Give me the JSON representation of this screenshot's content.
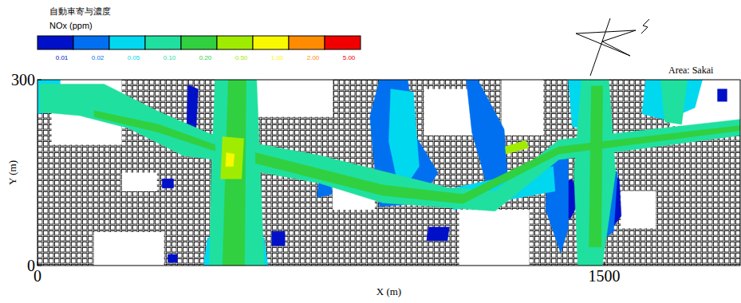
{
  "chart_data": {
    "type": "contour",
    "title": "自動車寄与濃度",
    "subtitle": "NOx (ppm)",
    "annotations": [
      "Area: Sakai"
    ],
    "x_label": "X (m)",
    "y_label": "Y (m)",
    "xlim": [
      0,
      1860
    ],
    "ylim": [
      0,
      300
    ],
    "xticks": [
      0,
      1500
    ],
    "yticks": [
      0,
      300
    ],
    "colorbar": {
      "ticks": [
        0.01,
        0.02,
        0.05,
        {
          "value": 0.1,
          "label": "0.10"
        },
        {
          "value": 0.2,
          "label": "0.20"
        },
        {
          "value": 0.5,
          "label": "0.50"
        },
        {
          "value": 1,
          "label": "1.00"
        },
        {
          "value": 2,
          "label": "2.00"
        },
        {
          "value": 5,
          "label": "5.00"
        }
      ],
      "colors": [
        "#0010c8",
        "#0070f0",
        "#00d8f0",
        "#20e0a0",
        "#30d040",
        "#a0ec00",
        "#f8f800",
        "#ff8c00",
        "#f00000"
      ]
    },
    "zones": [
      {
        "level": 0.01,
        "points": [
          [
            395,
            220
          ],
          [
            420,
            220
          ],
          [
            425,
            285
          ],
          [
            398,
            292
          ]
        ]
      },
      {
        "level": 0.01,
        "points": [
          [
            1370,
            85
          ],
          [
            1410,
            75
          ],
          [
            1435,
            105
          ],
          [
            1415,
            140
          ],
          [
            1385,
            130
          ]
        ]
      },
      {
        "level": 0.01,
        "points": [
          [
            1520,
            60
          ],
          [
            1545,
            80
          ],
          [
            1540,
            140
          ],
          [
            1515,
            150
          ]
        ]
      },
      {
        "level": 0.01,
        "points": [
          [
            1030,
            40
          ],
          [
            1085,
            40
          ],
          [
            1090,
            62
          ],
          [
            1035,
            62
          ]
        ]
      },
      {
        "level": 0.01,
        "points": [
          [
            620,
            32
          ],
          [
            655,
            32
          ],
          [
            655,
            55
          ],
          [
            620,
            55
          ]
        ]
      },
      {
        "level": 0.01,
        "points": [
          [
            345,
            5
          ],
          [
            370,
            5
          ],
          [
            370,
            18
          ],
          [
            345,
            18
          ]
        ]
      },
      {
        "level": 0.01,
        "points": [
          [
            1800,
            265
          ],
          [
            1825,
            265
          ],
          [
            1825,
            285
          ],
          [
            1800,
            285
          ]
        ]
      },
      {
        "level": 0.01,
        "points": [
          [
            330,
            125
          ],
          [
            360,
            125
          ],
          [
            360,
            140
          ],
          [
            330,
            140
          ]
        ]
      },
      {
        "level": 0.02,
        "points": [
          [
            905,
            300
          ],
          [
            980,
            300
          ],
          [
            1000,
            210
          ],
          [
            1060,
            150
          ],
          [
            1010,
            100
          ],
          [
            905,
            95
          ],
          [
            890,
            170
          ],
          [
            880,
            240
          ]
        ]
      },
      {
        "level": 0.02,
        "points": [
          [
            1135,
            300
          ],
          [
            1165,
            300
          ],
          [
            1235,
            220
          ],
          [
            1245,
            140
          ],
          [
            1190,
            128
          ],
          [
            1150,
            215
          ]
        ]
      },
      {
        "level": 0.02,
        "points": [
          [
            1350,
            165
          ],
          [
            1405,
            180
          ],
          [
            1405,
            60
          ],
          [
            1385,
            20
          ],
          [
            1345,
            90
          ]
        ]
      },
      {
        "level": 0.02,
        "points": [
          [
            1490,
            175
          ],
          [
            1535,
            150
          ],
          [
            1525,
            55
          ],
          [
            1495,
            40
          ]
        ]
      },
      {
        "level": 0.02,
        "points": [
          [
            740,
            110
          ],
          [
            780,
            115
          ],
          [
            775,
            145
          ],
          [
            745,
            140
          ]
        ]
      },
      {
        "level": 0.05,
        "points": [
          [
            935,
            285
          ],
          [
            995,
            280
          ],
          [
            1010,
            160
          ],
          [
            960,
            115
          ],
          [
            930,
            200
          ]
        ]
      },
      {
        "level": 0.05,
        "points": [
          [
            1405,
            300
          ],
          [
            1478,
            300
          ],
          [
            1472,
            215
          ],
          [
            1415,
            225
          ]
        ]
      },
      {
        "level": 0.05,
        "points": [
          [
            1100,
            125
          ],
          [
            1365,
            160
          ],
          [
            1370,
            120
          ],
          [
            1100,
            90
          ]
        ]
      },
      {
        "level": 0.05,
        "points": [
          [
            440,
            0
          ],
          [
            610,
            0
          ],
          [
            600,
            45
          ],
          [
            450,
            45
          ]
        ]
      },
      {
        "level": 0.05,
        "points": [
          [
            1610,
            300
          ],
          [
            1760,
            300
          ],
          [
            1740,
            255
          ],
          [
            1665,
            235
          ],
          [
            1600,
            245
          ]
        ]
      },
      {
        "level": 0.05,
        "points": [
          [
            0,
            300
          ],
          [
            60,
            300
          ],
          [
            60,
            250
          ],
          [
            0,
            245
          ]
        ]
      },
      {
        "level": 0.1,
        "points": [
          [
            455,
            0
          ],
          [
            600,
            0
          ],
          [
            590,
            150
          ],
          [
            580,
            300
          ],
          [
            470,
            300
          ],
          [
            460,
            150
          ]
        ]
      },
      {
        "level": 0.1,
        "points": [
          [
            6,
            293
          ],
          [
            176,
            293
          ],
          [
            323,
            248
          ],
          [
            471,
            209
          ],
          [
            471,
            171
          ],
          [
            387,
            177
          ],
          [
            239,
            222
          ],
          [
            112,
            242
          ],
          [
            6,
            248
          ]
        ]
      },
      {
        "level": 0.1,
        "points": [
          [
            577,
            197
          ],
          [
            746,
            178
          ],
          [
            915,
            152
          ],
          [
            1084,
            126
          ],
          [
            1211,
            120
          ],
          [
            1380,
            203
          ],
          [
            1860,
            236
          ],
          [
            1860,
            210
          ],
          [
            1380,
            171
          ],
          [
            1211,
            88
          ],
          [
            915,
            101
          ],
          [
            746,
            133
          ],
          [
            577,
            152
          ]
        ]
      },
      {
        "level": 0.1,
        "points": [
          [
            1430,
            0
          ],
          [
            1495,
            0
          ],
          [
            1530,
            150
          ],
          [
            1512,
            300
          ],
          [
            1440,
            300
          ],
          [
            1420,
            150
          ]
        ]
      },
      {
        "level": 0.1,
        "points": [
          [
            1650,
            300
          ],
          [
            1720,
            300
          ],
          [
            1705,
            228
          ],
          [
            1660,
            232
          ]
        ]
      },
      {
        "level": 0.2,
        "points": [
          [
            490,
            0
          ],
          [
            548,
            0
          ],
          [
            552,
            300
          ],
          [
            505,
            300
          ]
        ]
      },
      {
        "level": 0.2,
        "points": [
          [
            577,
            182
          ],
          [
            915,
            130
          ],
          [
            1126,
            115
          ],
          [
            1380,
            192
          ],
          [
            1860,
            226
          ],
          [
            1860,
            218
          ],
          [
            1380,
            180
          ],
          [
            1126,
            100
          ],
          [
            915,
            113
          ],
          [
            577,
            165
          ]
        ]
      },
      {
        "level": 0.2,
        "points": [
          [
            1460,
            30
          ],
          [
            1492,
            30
          ],
          [
            1496,
            290
          ],
          [
            1466,
            290
          ]
        ]
      },
      {
        "level": 0.2,
        "points": [
          [
            150,
            250
          ],
          [
            320,
            228
          ],
          [
            470,
            195
          ],
          [
            470,
            185
          ],
          [
            320,
            215
          ],
          [
            150,
            240
          ]
        ]
      },
      {
        "level": 0.5,
        "points": [
          [
            485,
            140
          ],
          [
            540,
            140
          ],
          [
            546,
            205
          ],
          [
            490,
            208
          ]
        ]
      },
      {
        "level": 0.5,
        "points": [
          [
            1240,
            180
          ],
          [
            1300,
            190
          ],
          [
            1292,
            202
          ],
          [
            1238,
            192
          ]
        ]
      },
      {
        "level": 1,
        "points": [
          [
            498,
            160
          ],
          [
            518,
            160
          ],
          [
            521,
            180
          ],
          [
            500,
            182
          ]
        ]
      }
    ]
  }
}
